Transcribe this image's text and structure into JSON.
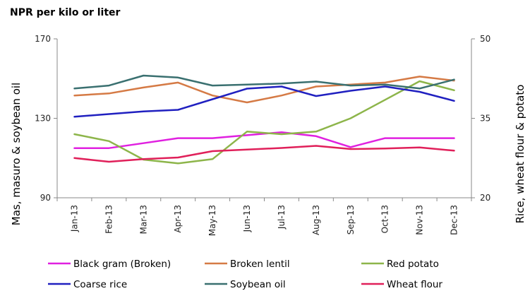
{
  "chart_data": {
    "type": "line",
    "title": "NPR per kilo or liter",
    "ylabel_left": "Mas, masuro & soybean oil",
    "ylabel_right": "Rice, wheat flour & potato",
    "ylim_left": [
      90,
      170
    ],
    "ylim_right": [
      20,
      50
    ],
    "yticks_left": [
      "90",
      "130",
      "170"
    ],
    "yticks_right": [
      "20",
      "35",
      "50"
    ],
    "grid": false,
    "legend_position": "bottom",
    "categories": [
      "Jan-13",
      "Feb-13",
      "Mar-13",
      "Apr-13",
      "May-13",
      "Jun-13",
      "Jul-13",
      "Aug-13",
      "Sep-13",
      "Oct-13",
      "Nov-13",
      "Dec-13"
    ],
    "series": [
      {
        "name": "Black gram (Broken)",
        "axis": "left",
        "color": "#e020e0",
        "values": [
          115,
          115,
          117.5,
          120,
          120,
          121.5,
          123,
          121,
          115.5,
          120,
          120,
          120
        ]
      },
      {
        "name": "Broken lentil",
        "axis": "left",
        "color": "#d57a45",
        "values": [
          141.5,
          142.5,
          145.5,
          148,
          141.5,
          138,
          141.5,
          146,
          147,
          148,
          151,
          149
        ]
      },
      {
        "name": "Red potato",
        "axis": "right",
        "color": "#8db54a",
        "values": [
          32,
          30.7,
          27.2,
          26.5,
          27.3,
          32.5,
          32,
          32.5,
          35,
          38.5,
          42,
          40.3
        ]
      },
      {
        "name": "Coarse rice",
        "axis": "right",
        "color": "#2020c0",
        "values": [
          35.3,
          35.8,
          36.3,
          36.6,
          38.6,
          40.6,
          41,
          39.2,
          40.2,
          41,
          40,
          38.3
        ]
      },
      {
        "name": "Soybean oil",
        "axis": "left",
        "color": "#3a7070",
        "values": [
          145,
          146.5,
          151.5,
          150.5,
          146.5,
          147,
          147.5,
          148.5,
          146.5,
          147,
          145,
          149.5
        ]
      },
      {
        "name": "Wheat flour",
        "axis": "right",
        "color": "#e0205a",
        "values": [
          27.5,
          26.8,
          27.3,
          27.6,
          28.8,
          29.1,
          29.4,
          29.8,
          29.2,
          29.3,
          29.5,
          28.9
        ]
      }
    ]
  }
}
